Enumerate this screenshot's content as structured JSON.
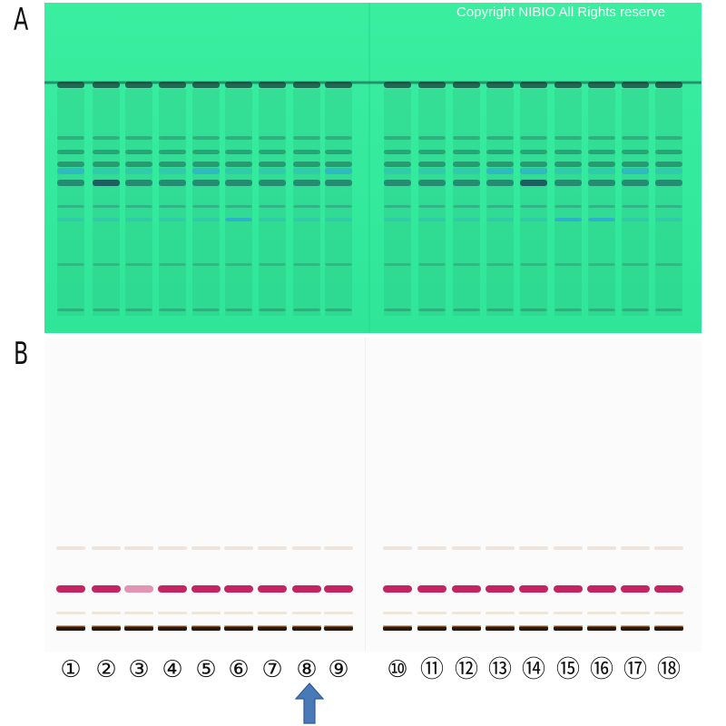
{
  "panels": [
    {
      "label": "A",
      "description_bg": "#34f09a"
    },
    {
      "label": "B"
    }
  ],
  "copyright": "Copyright NIBIO All Rights reserve",
  "lanes": [
    "①",
    "②",
    "③",
    "④",
    "⑤",
    "⑥",
    "⑦",
    "⑧",
    "⑨",
    "⑩",
    "⑪",
    "⑫",
    "⑬",
    "⑭",
    "⑮",
    "⑯",
    "⑰",
    "⑱"
  ],
  "highlighted_lane": "⑧",
  "colors": {
    "plate_a_bg": "#34f09a",
    "plate_b_bg": "#fbfbfb",
    "band_dark": "#1f5e55",
    "band_blue": "#2ea8d8",
    "band_magenta": "#c2185b",
    "band_black": "#1a0f05",
    "arrow": "#4a79b8"
  }
}
